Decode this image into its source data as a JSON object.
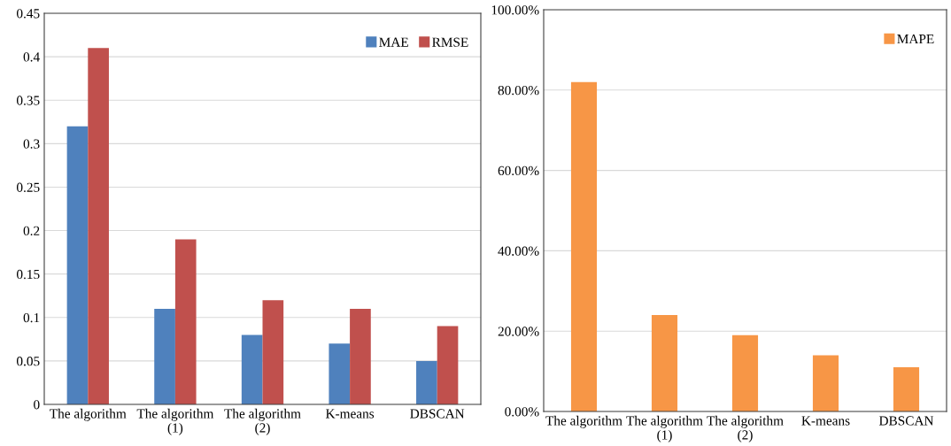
{
  "chart_data": [
    {
      "type": "bar",
      "categories": [
        "The algorithm",
        "The algorithm\n(1)",
        "The algorithm\n(2)",
        "K-means",
        "DBSCAN"
      ],
      "series": [
        {
          "name": "MAE",
          "color": "#4f81bd",
          "values": [
            0.32,
            0.11,
            0.08,
            0.07,
            0.05
          ]
        },
        {
          "name": "RMSE",
          "color": "#c0504d",
          "values": [
            0.41,
            0.19,
            0.12,
            0.11,
            0.09
          ]
        }
      ],
      "ylim": [
        0,
        0.45
      ],
      "yticks": [
        0,
        0.05,
        0.1,
        0.15,
        0.2,
        0.25,
        0.3,
        0.35,
        0.4,
        0.45
      ],
      "grid": "y",
      "legend": "top right"
    },
    {
      "type": "bar",
      "categories": [
        "The algorithm",
        "The algorithm\n(1)",
        "The algorithm\n(2)",
        "K-means",
        "DBSCAN"
      ],
      "series": [
        {
          "name": "MAPE",
          "color": "#f79646",
          "values": [
            82,
            24,
            19,
            14,
            11
          ]
        }
      ],
      "ylim": [
        0,
        100
      ],
      "yticks": [
        {
          "value": 0,
          "label": "0.00%"
        },
        {
          "value": 20,
          "label": "20.00%"
        },
        {
          "value": 40,
          "label": "40.00%"
        },
        {
          "value": 60,
          "label": "60.00%"
        },
        {
          "value": 80,
          "label": "80.00%"
        },
        {
          "value": 100,
          "label": "100.00%"
        }
      ],
      "grid": "y",
      "legend": "top right"
    }
  ]
}
